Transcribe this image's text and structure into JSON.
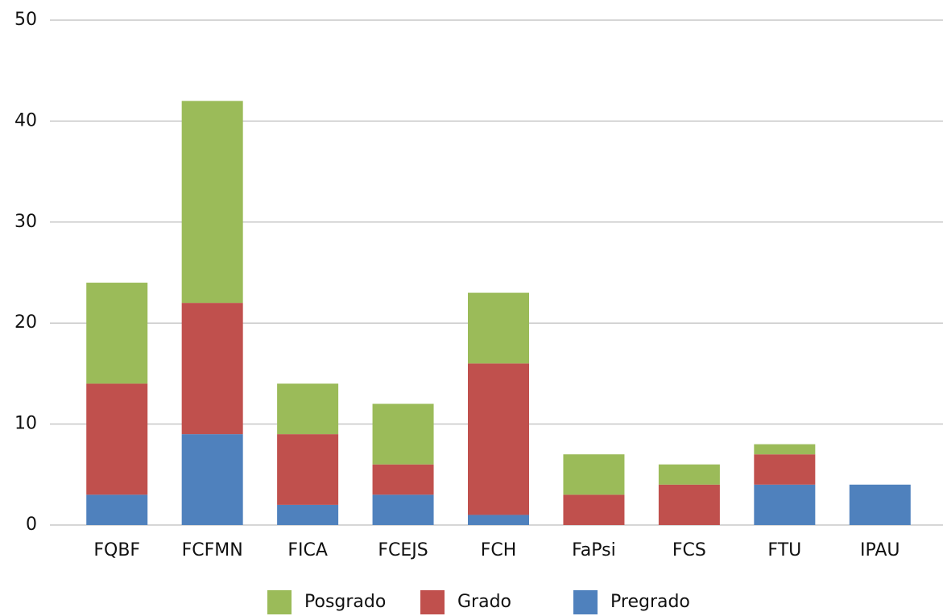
{
  "chart_data": {
    "type": "stacked_bar",
    "categories": [
      "FQBF",
      "FCFMN",
      "FICA",
      "FCEJS",
      "FCH",
      "FaPsi",
      "FCS",
      "FTU",
      "IPAU"
    ],
    "series": [
      {
        "name": "Pregrado",
        "color": "#4f81bd",
        "values": [
          3,
          9,
          2,
          3,
          1,
          0,
          0,
          4,
          4
        ]
      },
      {
        "name": "Grado",
        "color": "#c0504d",
        "values": [
          11,
          13,
          7,
          3,
          15,
          3,
          4,
          3,
          0
        ]
      },
      {
        "name": "Posgrado",
        "color": "#9bbb59",
        "values": [
          10,
          20,
          5,
          6,
          7,
          4,
          2,
          1,
          0
        ]
      }
    ],
    "ylim": [
      0,
      50
    ],
    "yticks": [
      0,
      10,
      20,
      30,
      40,
      50
    ],
    "grid": true
  }
}
